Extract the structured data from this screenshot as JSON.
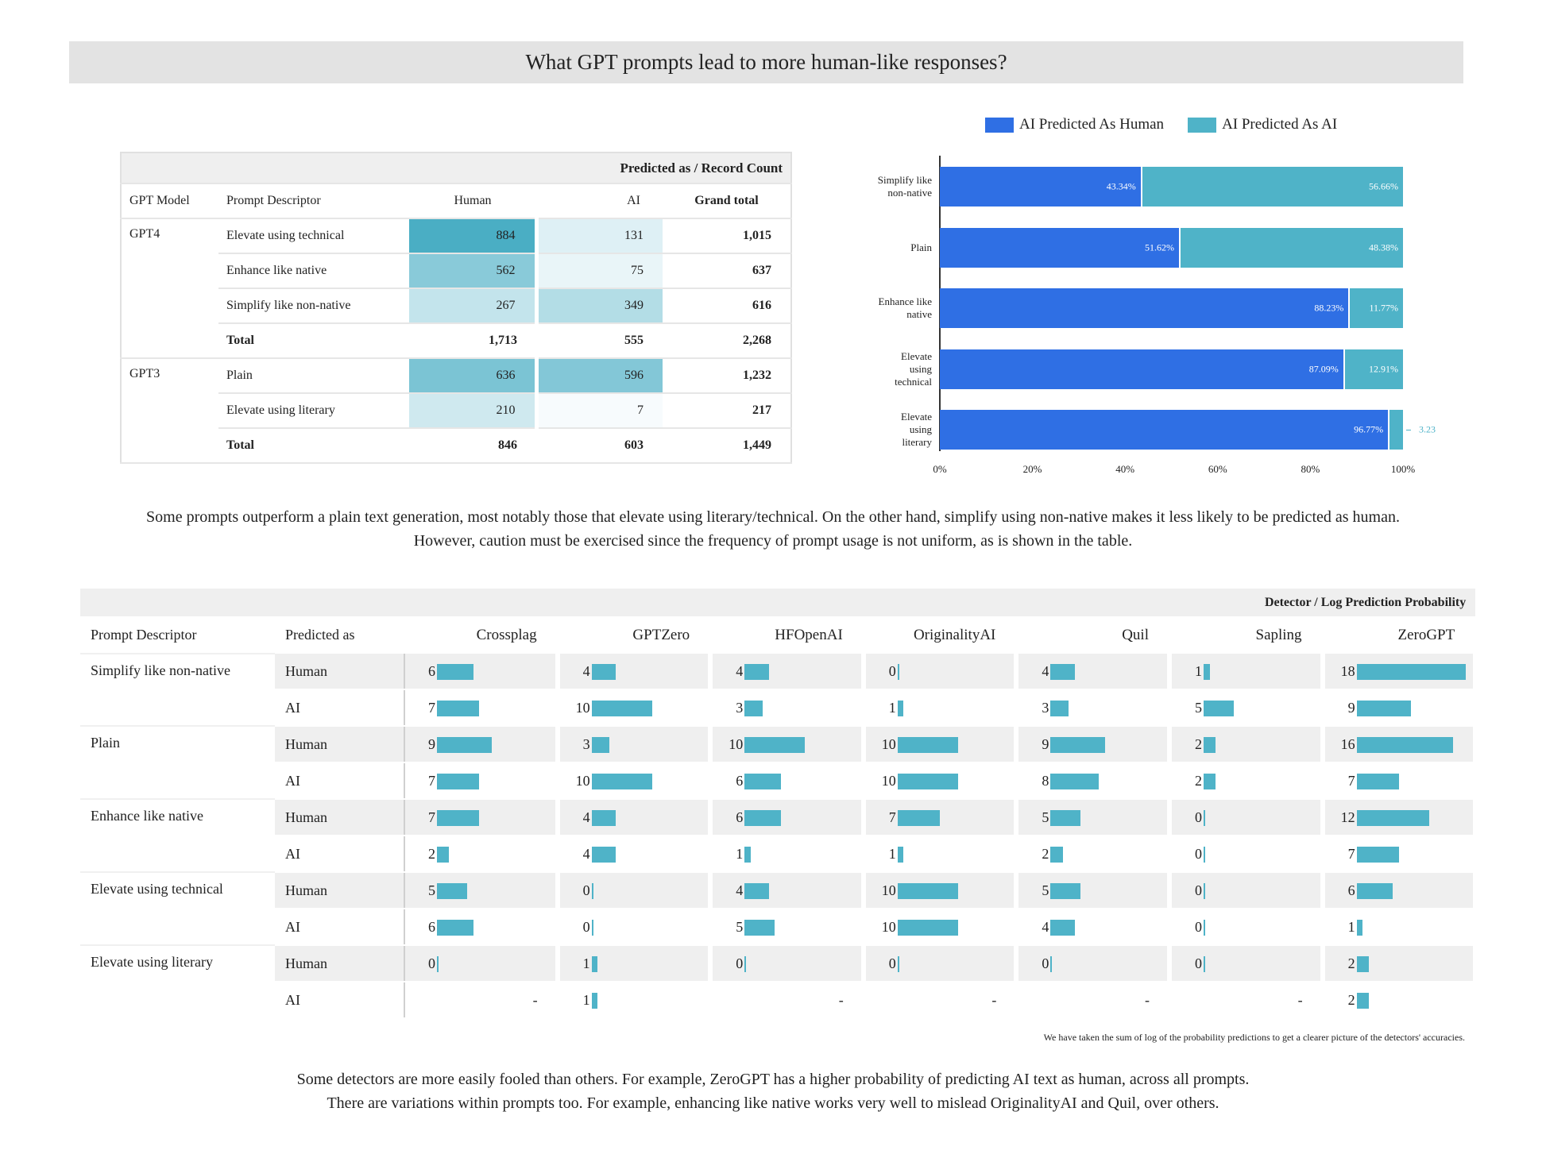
{
  "header": {
    "title": "What GPT prompts lead to more human-like responses?"
  },
  "table1": {
    "header": "Predicted as / Record Count",
    "columns": [
      "GPT Model",
      "Prompt Descriptor",
      "Human",
      "AI",
      "Grand total"
    ],
    "groups": [
      {
        "model": "GPT4",
        "rows": [
          {
            "descriptor": "Elevate using technical",
            "human": 884,
            "ai": 131,
            "grand_total": "1,015"
          },
          {
            "descriptor": "Enhance like native",
            "human": 562,
            "ai": 75,
            "grand_total": 637
          },
          {
            "descriptor": "Simplify like non-native",
            "human": 267,
            "ai": 349,
            "grand_total": 616
          }
        ],
        "total": {
          "label": "Total",
          "human": "1,713",
          "ai": 555,
          "grand_total": "2,268"
        }
      },
      {
        "model": "GPT3",
        "rows": [
          {
            "descriptor": "Plain",
            "human": 636,
            "ai": 596,
            "grand_total": "1,232"
          },
          {
            "descriptor": "Elevate using literary",
            "human": 210,
            "ai": 7,
            "grand_total": 217
          }
        ],
        "total": {
          "label": "Total",
          "human": 846,
          "ai": 603,
          "grand_total": "1,449"
        }
      }
    ],
    "heat_color": "#4aaec4"
  },
  "chart_data": {
    "type": "stacked-bar-horizontal",
    "categories": [
      "Simplify like\nnon-native",
      "Plain",
      "Enhance like\nnative",
      "Elevate\nusing\ntechnical",
      "Elevate\nusing\nliterary"
    ],
    "series": [
      {
        "name": "AI Predicted As Human",
        "color": "#2f6fe4",
        "values": [
          43.34,
          51.62,
          88.23,
          87.09,
          96.77
        ],
        "value_labels": [
          "43.34%",
          "51.62%",
          "88.23%",
          "87.09%",
          "96.77%"
        ]
      },
      {
        "name": "AI Predicted As AI",
        "color": "#4fb3c8",
        "values": [
          56.66,
          48.38,
          11.77,
          12.91,
          3.23
        ],
        "value_labels": [
          "56.66%",
          "48.38%",
          "11.77%",
          "12.91%",
          "3.23"
        ]
      }
    ],
    "xlim": [
      0,
      100
    ],
    "xticks": [
      {
        "value": 0,
        "label": "0%"
      },
      {
        "value": 20,
        "label": "20%"
      },
      {
        "value": 40,
        "label": "40%"
      },
      {
        "value": 60,
        "label": "60%"
      },
      {
        "value": 80,
        "label": "80%"
      },
      {
        "value": 100,
        "label": "100%"
      }
    ],
    "legend": "top"
  },
  "text1": "Some prompts outperform a plain text generation, most notably those that elevate using literary/technical. On the other hand, simplify using non-native makes it less likely to be predicted as human. However, caution must be exercised since the frequency of prompt usage is not uniform, as is shown in the table.",
  "table2": {
    "header": "Detector / Log Prediction Probability",
    "columns": [
      "Prompt Descriptor",
      "Predicted as",
      "Crossplag",
      "GPTZero",
      "HFOpenAI",
      "OriginalityAI",
      "Quil",
      "Sapling",
      "ZeroGPT"
    ],
    "bar_color": "#4fb3c8",
    "groups": [
      {
        "descriptor": "Simplify like non-native",
        "rows": [
          {
            "predicted_as": "Human",
            "values": [
              6,
              4,
              4,
              0,
              4,
              1,
              18
            ]
          },
          {
            "predicted_as": "AI",
            "values": [
              7,
              10,
              3,
              1,
              3,
              5,
              9
            ]
          }
        ]
      },
      {
        "descriptor": "Plain",
        "rows": [
          {
            "predicted_as": "Human",
            "values": [
              9,
              3,
              10,
              10,
              9,
              2,
              16
            ]
          },
          {
            "predicted_as": "AI",
            "values": [
              7,
              10,
              6,
              10,
              8,
              2,
              7
            ]
          }
        ]
      },
      {
        "descriptor": "Enhance like native",
        "rows": [
          {
            "predicted_as": "Human",
            "values": [
              7,
              4,
              6,
              7,
              5,
              0,
              12
            ]
          },
          {
            "predicted_as": "AI",
            "values": [
              2,
              4,
              1,
              1,
              2,
              0,
              7
            ]
          }
        ]
      },
      {
        "descriptor": "Elevate using technical",
        "rows": [
          {
            "predicted_as": "Human",
            "values": [
              5,
              0,
              4,
              10,
              5,
              0,
              6
            ]
          },
          {
            "predicted_as": "AI",
            "values": [
              6,
              0,
              5,
              10,
              4,
              0,
              1
            ]
          }
        ]
      },
      {
        "descriptor": "Elevate using literary",
        "rows": [
          {
            "predicted_as": "Human",
            "values": [
              0,
              1,
              0,
              0,
              0,
              0,
              2
            ]
          },
          {
            "predicted_as": "AI",
            "values": [
              "-",
              1,
              "-",
              "-",
              "-",
              "-",
              2
            ]
          }
        ]
      }
    ]
  },
  "note": "We have taken the sum of log of the probability predictions to get a clearer picture of the detectors' accuracies.",
  "text2": [
    "Some detectors are more easily fooled than others. For example, ZeroGPT has a higher probability of predicting AI text as human, across all prompts.",
    "There are variations within prompts too. For example, enhancing like native works very well to mislead OriginalityAI and Quil, over others."
  ]
}
